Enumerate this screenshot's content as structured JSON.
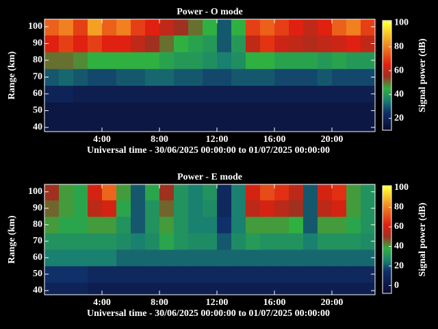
{
  "chart_data": [
    {
      "type": "heatmap",
      "title": "Power - O mode",
      "xlabel": "Universal time - 30/06/2025 00:00:00 to 01/07/2025 00:00:00",
      "ylabel": "Range (km)",
      "colorbar_label": "Signal power (dB)",
      "xbins": [
        0,
        1,
        2,
        3,
        4,
        5,
        6,
        7,
        8,
        9,
        10,
        11,
        12,
        13,
        14,
        15,
        16,
        17,
        18,
        19,
        20,
        21,
        22,
        23
      ],
      "ybins": [
        35,
        45,
        55,
        65,
        75,
        85,
        95,
        105
      ],
      "z": [
        [
          15,
          15,
          15,
          15,
          15,
          15,
          15,
          15,
          15,
          15,
          15,
          15,
          15,
          15,
          15,
          15,
          15,
          15,
          15,
          15,
          15,
          15,
          15
        ],
        [
          15,
          15,
          15,
          15,
          15,
          15,
          15,
          15,
          15,
          15,
          15,
          15,
          15,
          15,
          15,
          15,
          15,
          15,
          15,
          15,
          15,
          15,
          15
        ],
        [
          20,
          20,
          18,
          18,
          18,
          18,
          18,
          18,
          18,
          18,
          18,
          18,
          18,
          18,
          18,
          18,
          18,
          18,
          18,
          18,
          18,
          18,
          18
        ],
        [
          30,
          32,
          30,
          28,
          28,
          30,
          30,
          32,
          32,
          30,
          30,
          28,
          28,
          30,
          30,
          30,
          28,
          28,
          28,
          30,
          28,
          28,
          28
        ],
        [
          50,
          50,
          48,
          45,
          45,
          45,
          45,
          45,
          42,
          40,
          40,
          38,
          35,
          38,
          45,
          45,
          42,
          42,
          42,
          40,
          42,
          40,
          40
        ],
        [
          65,
          70,
          65,
          70,
          65,
          65,
          60,
          55,
          50,
          45,
          42,
          40,
          30,
          40,
          60,
          68,
          62,
          60,
          58,
          60,
          62,
          65,
          60
        ],
        [
          75,
          80,
          70,
          85,
          75,
          80,
          70,
          65,
          60,
          55,
          50,
          45,
          30,
          45,
          70,
          75,
          70,
          65,
          60,
          65,
          75,
          80,
          70
        ]
      ],
      "xlim": [
        0,
        23
      ],
      "ylim": [
        37.5,
        104.5
      ],
      "xticks": [
        {
          "value": 4,
          "label": "4:00"
        },
        {
          "value": 8,
          "label": "8:00"
        },
        {
          "value": 12,
          "label": "12:00"
        },
        {
          "value": 16,
          "label": "16:00"
        },
        {
          "value": 20,
          "label": "20:00"
        }
      ],
      "yticks": [
        40,
        50,
        60,
        70,
        80,
        90,
        100
      ],
      "clim": [
        10,
        102
      ],
      "cticks": [
        20,
        40,
        60,
        80,
        100
      ],
      "colorscale": [
        [
          10,
          "#0a0a30"
        ],
        [
          25,
          "#10306a"
        ],
        [
          35,
          "#1a8070"
        ],
        [
          45,
          "#30b040"
        ],
        [
          55,
          "#a03020"
        ],
        [
          65,
          "#e02010"
        ],
        [
          80,
          "#f08020"
        ],
        [
          100,
          "#ffff30"
        ]
      ]
    },
    {
      "type": "heatmap",
      "title": "Power - E mode",
      "xlabel": "Universal time - 30/06/2025 00:00:00 to 01/07/2025 00:00:00",
      "ylabel": "Range (km)",
      "colorbar_label": "Signal power (dB)",
      "xbins": [
        0,
        1,
        2,
        3,
        4,
        5,
        6,
        7,
        8,
        9,
        10,
        11,
        12,
        13,
        14,
        15,
        16,
        17,
        18,
        19,
        20,
        21,
        22,
        23
      ],
      "ybins": [
        35,
        45,
        55,
        65,
        75,
        85,
        95,
        105
      ],
      "z": [
        [
          8,
          8,
          8,
          5,
          5,
          5,
          5,
          5,
          5,
          5,
          5,
          5,
          5,
          5,
          5,
          5,
          5,
          5,
          5,
          5,
          5,
          5,
          5
        ],
        [
          15,
          15,
          15,
          10,
          10,
          10,
          10,
          10,
          10,
          10,
          10,
          10,
          10,
          10,
          10,
          10,
          10,
          10,
          10,
          10,
          10,
          10,
          10
        ],
        [
          25,
          25,
          25,
          25,
          25,
          22,
          22,
          22,
          22,
          22,
          22,
          22,
          22,
          22,
          22,
          22,
          22,
          22,
          22,
          22,
          22,
          22,
          22
        ],
        [
          30,
          30,
          30,
          30,
          30,
          28,
          25,
          28,
          35,
          30,
          28,
          28,
          20,
          28,
          32,
          30,
          30,
          30,
          25,
          30,
          30,
          30,
          28
        ],
        [
          40,
          35,
          35,
          40,
          40,
          30,
          20,
          30,
          40,
          30,
          25,
          25,
          15,
          25,
          40,
          40,
          40,
          38,
          20,
          40,
          40,
          35,
          30
        ],
        [
          45,
          40,
          35,
          55,
          60,
          35,
          20,
          30,
          45,
          30,
          25,
          28,
          10,
          25,
          55,
          60,
          55,
          50,
          20,
          55,
          60,
          40,
          30
        ],
        [
          50,
          40,
          35,
          60,
          75,
          40,
          20,
          35,
          50,
          30,
          25,
          30,
          10,
          25,
          60,
          70,
          65,
          55,
          20,
          60,
          65,
          40,
          30
        ]
      ],
      "xlim": [
        0,
        23
      ],
      "ylim": [
        37.5,
        104.5
      ],
      "xticks": [
        {
          "value": 4,
          "label": "4:00"
        },
        {
          "value": 8,
          "label": "8:00"
        },
        {
          "value": 12,
          "label": "12:00"
        },
        {
          "value": 16,
          "label": "16:00"
        },
        {
          "value": 20,
          "label": "20:00"
        }
      ],
      "yticks": [
        40,
        50,
        60,
        70,
        80,
        90,
        100
      ],
      "clim": [
        -8,
        102
      ],
      "cticks": [
        0,
        20,
        40,
        60,
        80,
        100
      ],
      "colorscale": [
        [
          -8,
          "#0a0a30"
        ],
        [
          15,
          "#10306a"
        ],
        [
          25,
          "#1a8070"
        ],
        [
          38,
          "#30b040"
        ],
        [
          50,
          "#a03020"
        ],
        [
          62,
          "#e02010"
        ],
        [
          80,
          "#f08020"
        ],
        [
          100,
          "#ffff30"
        ]
      ]
    }
  ]
}
